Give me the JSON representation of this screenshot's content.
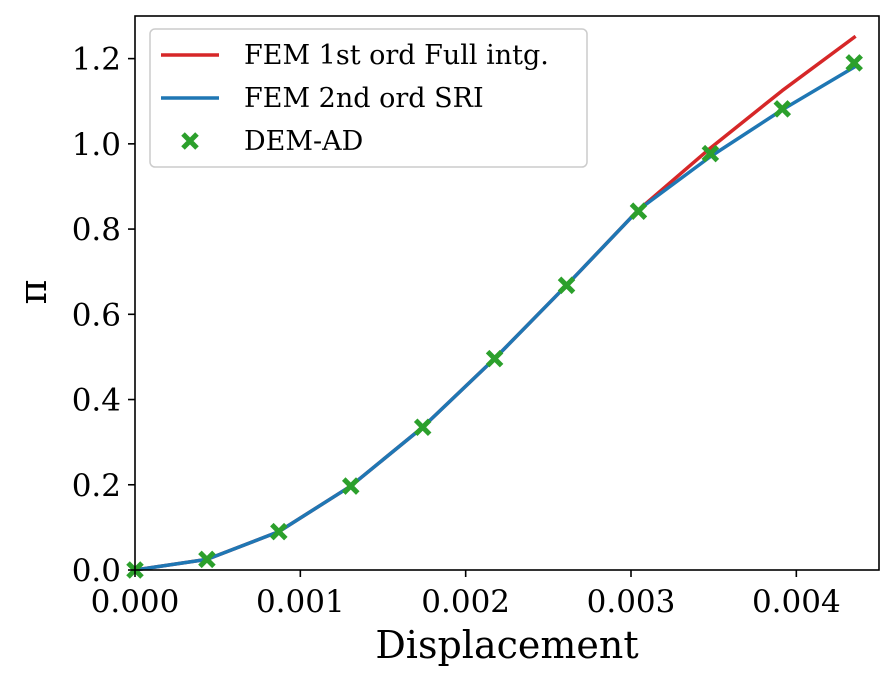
{
  "chart_data": {
    "type": "line",
    "title": "",
    "xlabel": "Displacement",
    "ylabel": "π",
    "xlim": [
      0.0,
      0.0045
    ],
    "ylim": [
      0.0,
      1.3
    ],
    "xticks": [
      0.0,
      0.001,
      0.002,
      0.003,
      0.004
    ],
    "xtick_labels": [
      "0.000",
      "0.001",
      "0.002",
      "0.003",
      "0.004"
    ],
    "yticks": [
      0.0,
      0.2,
      0.4,
      0.6,
      0.8,
      1.0,
      1.2
    ],
    "ytick_labels": [
      "0.0",
      "0.2",
      "0.4",
      "0.6",
      "0.8",
      "1.0",
      "1.2"
    ],
    "grid": false,
    "legend_position": "top-left",
    "series": [
      {
        "name": "FEM 1st ord Full intg.",
        "kind": "line",
        "color": "#d62728",
        "x": [
          0.0,
          0.000435,
          0.00087,
          0.001305,
          0.00174,
          0.002175,
          0.00261,
          0.003045,
          0.00348,
          0.003915,
          0.00435
        ],
        "y": [
          0.0,
          0.025,
          0.09,
          0.197,
          0.335,
          0.496,
          0.668,
          0.845,
          0.99,
          1.125,
          1.25
        ]
      },
      {
        "name": "FEM 2nd ord SRI",
        "kind": "line",
        "color": "#1f77b4",
        "x": [
          0.0,
          0.000435,
          0.00087,
          0.001305,
          0.00174,
          0.002175,
          0.00261,
          0.003045,
          0.00348,
          0.003915,
          0.00435
        ],
        "y": [
          0.0,
          0.025,
          0.09,
          0.197,
          0.335,
          0.496,
          0.668,
          0.845,
          0.97,
          1.08,
          1.18
        ]
      },
      {
        "name": "DEM-AD",
        "kind": "scatter",
        "marker": "x",
        "color": "#2ca02c",
        "x": [
          0.0,
          0.000435,
          0.00087,
          0.001305,
          0.00174,
          0.002175,
          0.00261,
          0.003045,
          0.00348,
          0.003915,
          0.00435
        ],
        "y": [
          0.0,
          0.025,
          0.09,
          0.197,
          0.335,
          0.496,
          0.668,
          0.842,
          0.977,
          1.082,
          1.19
        ]
      }
    ]
  }
}
